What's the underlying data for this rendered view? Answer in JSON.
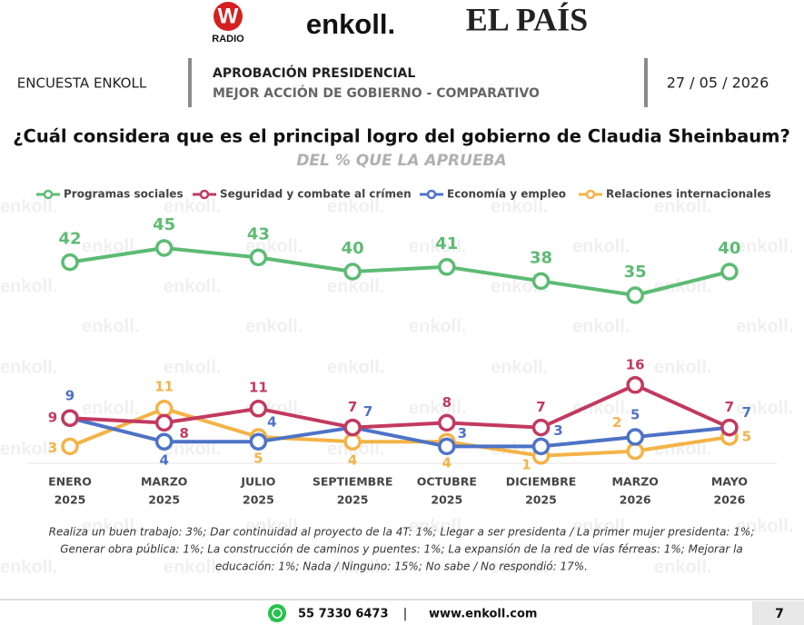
{
  "header": {
    "logo_w": "W",
    "logo_radio": "RADIO",
    "logo_enkoll": "enkoll.",
    "logo_pais": "EL PAÍS",
    "survey": "ENCUESTA ENKOLL",
    "topic_lines": [
      "APROBACIÓN PRESIDENCIAL",
      "MEJOR ACCIÓN DE GOBIERNO - COMPARATIVO"
    ],
    "date": "27 / 05 / 2026"
  },
  "watermark": "enkoll.",
  "chart_data": {
    "type": "line",
    "title": "¿Cuál considera que es el principal logro del gobierno de Claudia Sheinbaum?",
    "subtitle": "DEL % QUE LA APRUEBA",
    "categories": [
      [
        "ENERO",
        "2025"
      ],
      [
        "MARZO",
        "2025"
      ],
      [
        "JULIO",
        "2025"
      ],
      [
        "SEPTIEMBRE",
        "2025"
      ],
      [
        "OCTUBRE",
        "2025"
      ],
      [
        "DICIEMBRE",
        "2025"
      ],
      [
        "MARZO",
        "2026"
      ],
      [
        "MAYO",
        "2026"
      ]
    ],
    "series": [
      {
        "name": "Programas sociales",
        "color": "#5dbb74",
        "values": [
          42,
          45,
          43,
          40,
          41,
          38,
          35,
          40
        ]
      },
      {
        "name": "Seguridad y combate al crímen",
        "color": "#c23a5f",
        "values": [
          9,
          8,
          11,
          7,
          8,
          7,
          16,
          7
        ]
      },
      {
        "name": "Economía y empleo",
        "color": "#4d73c6",
        "values": [
          9,
          4,
          4,
          7,
          3,
          3,
          5,
          7
        ]
      },
      {
        "name": "Relaciones internacionales",
        "color": "#f4b347",
        "values": [
          3,
          11,
          5,
          4,
          4,
          1,
          2,
          5
        ]
      }
    ],
    "ylim": [
      0,
      50
    ],
    "note_lines": [
      "Realiza un buen trabajo: 3%; Dar continuidad al proyecto de la 4T: 1%; Llegar a ser presidenta / La primer mujer presidenta: 1%;",
      "Generar obra pública: 1%; La construcción de caminos y puentes: 1%; La expansión de la red de vías férreas: 1%; Mejorar la",
      "educación: 1%; Nada / Ninguno: 15%; No sabe / No respondió: 17%."
    ]
  },
  "footer": {
    "phone": "55 7330 6473",
    "separator": "|",
    "web": "www.enkoll.com",
    "page": "7"
  }
}
